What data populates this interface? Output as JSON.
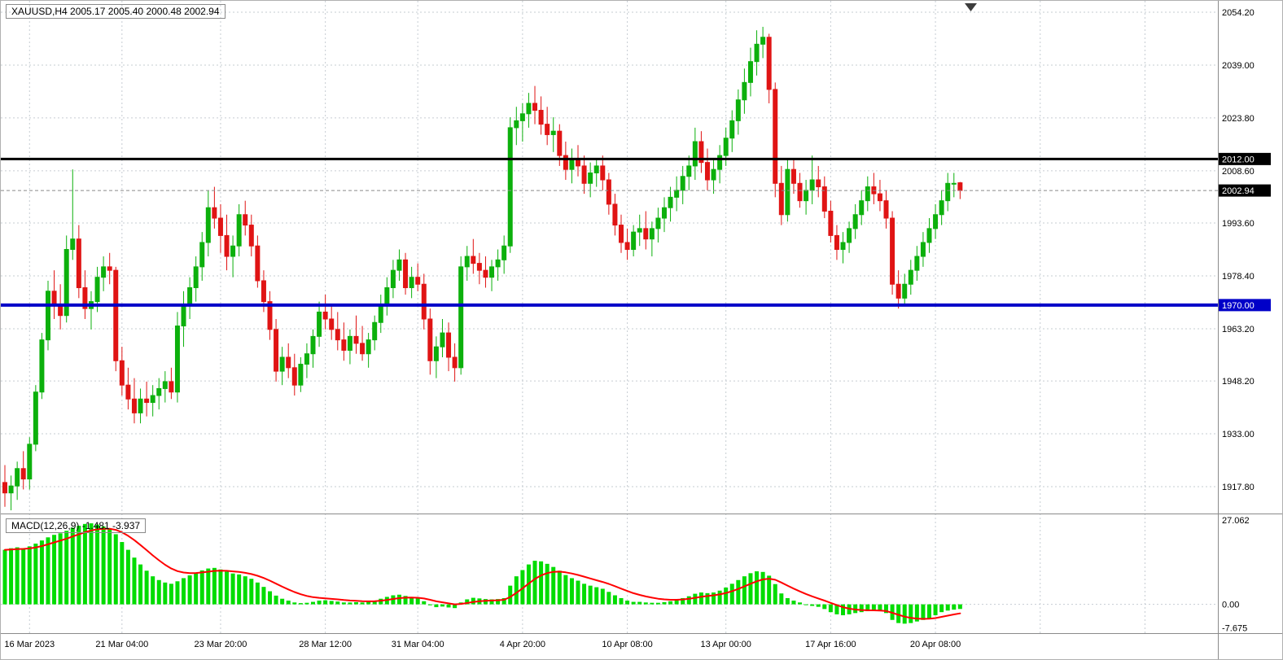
{
  "header": {
    "title_line": "XAUUSD,H4  2005.17 2005.40 2000.48 2002.94"
  },
  "indicator": {
    "label": "MACD(12,26,9) -1.481 -3.937"
  },
  "chart_data": {
    "type": "candlestick",
    "symbol": "XAUUSD",
    "timeframe": "H4",
    "ohlc_display": {
      "open": 2005.17,
      "high": 2005.4,
      "low": 2000.48,
      "close": 2002.94
    },
    "colors": {
      "up": "#0CB00C",
      "down": "#E01414",
      "macd_bar": "#00DC00",
      "signal": "#FF0000",
      "grid": "#C6CCD2",
      "level_black": "#000000",
      "level_blue": "#0000C8",
      "current_line": "#8A8A8A"
    },
    "price_axis": {
      "ticks": [
        {
          "label": "2054.20",
          "value": 2054.2
        },
        {
          "label": "2039.00",
          "value": 2039.0
        },
        {
          "label": "2023.80",
          "value": 2023.8
        },
        {
          "label": "2008.60",
          "value": 2008.6
        },
        {
          "label": "1993.60",
          "value": 1993.6
        },
        {
          "label": "1978.40",
          "value": 1978.4
        },
        {
          "label": "1963.20",
          "value": 1963.2
        },
        {
          "label": "1948.20",
          "value": 1948.2
        },
        {
          "label": "1933.00",
          "value": 1933.0
        },
        {
          "label": "1917.80",
          "value": 1917.8
        }
      ]
    },
    "levels": [
      {
        "label": "2012.00",
        "value": 2012.0,
        "color": "#000000",
        "width": 3,
        "badge": "#000000"
      },
      {
        "label": "2002.94",
        "value": 2002.94,
        "color": "#8A8A8A",
        "width": 1,
        "dash": "4,3",
        "badge": "#000000"
      },
      {
        "label": "1970.00",
        "value": 1970.0,
        "color": "#0000C8",
        "width": 4,
        "badge": "#0000C8"
      }
    ],
    "time_axis": [
      {
        "label": "16 Mar 2023",
        "index": 4
      },
      {
        "label": "21 Mar 04:00",
        "index": 19
      },
      {
        "label": "23 Mar 20:00",
        "index": 35
      },
      {
        "label": "28 Mar 12:00",
        "index": 52
      },
      {
        "label": "31 Mar 04:00",
        "index": 67
      },
      {
        "label": "4 Apr 20:00",
        "index": 84
      },
      {
        "label": "10 Apr 08:00",
        "index": 101
      },
      {
        "label": "13 Apr 00:00",
        "index": 117
      },
      {
        "label": "17 Apr 16:00",
        "index": 134
      },
      {
        "label": "20 Apr 08:00",
        "index": 151
      }
    ],
    "grid_extra_indices": [
      168,
      185
    ],
    "candles": [
      [
        1919,
        1924,
        1912,
        1916
      ],
      [
        1916,
        1921,
        1911,
        1918
      ],
      [
        1918,
        1925,
        1914,
        1923
      ],
      [
        1923,
        1928,
        1917,
        1920
      ],
      [
        1920,
        1932,
        1917,
        1930
      ],
      [
        1930,
        1947,
        1928,
        1945
      ],
      [
        1945,
        1962,
        1943,
        1960
      ],
      [
        1960,
        1977,
        1957,
        1974
      ],
      [
        1974,
        1980,
        1966,
        1970
      ],
      [
        1970,
        1976,
        1963,
        1967
      ],
      [
        1967,
        1990,
        1965,
        1986
      ],
      [
        1986,
        2009,
        1983,
        1989
      ],
      [
        1989,
        1993,
        1972,
        1975
      ],
      [
        1975,
        1980,
        1966,
        1969
      ],
      [
        1969,
        1974,
        1963,
        1971
      ],
      [
        1971,
        1981,
        1968,
        1978
      ],
      [
        1978,
        1984,
        1974,
        1981
      ],
      [
        1981,
        1985,
        1976,
        1980
      ],
      [
        1980,
        1981,
        1951,
        1954
      ],
      [
        1954,
        1958,
        1944,
        1947
      ],
      [
        1947,
        1952,
        1940,
        1943
      ],
      [
        1943,
        1949,
        1936,
        1939
      ],
      [
        1939,
        1946,
        1936,
        1943
      ],
      [
        1943,
        1948,
        1938,
        1942
      ],
      [
        1942,
        1947,
        1938,
        1944
      ],
      [
        1944,
        1949,
        1940,
        1946
      ],
      [
        1946,
        1951,
        1942,
        1948
      ],
      [
        1948,
        1952,
        1943,
        1945
      ],
      [
        1945,
        1968,
        1942,
        1964
      ],
      [
        1964,
        1974,
        1958,
        1970
      ],
      [
        1970,
        1978,
        1966,
        1975
      ],
      [
        1975,
        1984,
        1971,
        1981
      ],
      [
        1981,
        1991,
        1977,
        1988
      ],
      [
        1988,
        2003,
        1984,
        1998
      ],
      [
        1998,
        2004,
        1992,
        1995
      ],
      [
        1995,
        1999,
        1985,
        1990
      ],
      [
        1990,
        1996,
        1980,
        1984
      ],
      [
        1984,
        1990,
        1978,
        1987
      ],
      [
        1987,
        1999,
        1984,
        1996
      ],
      [
        1996,
        2000,
        1990,
        1993
      ],
      [
        1993,
        1996,
        1984,
        1987
      ],
      [
        1987,
        1990,
        1975,
        1977
      ],
      [
        1977,
        1980,
        1968,
        1971
      ],
      [
        1971,
        1974,
        1960,
        1963
      ],
      [
        1963,
        1966,
        1948,
        1951
      ],
      [
        1951,
        1958,
        1947,
        1955
      ],
      [
        1955,
        1959,
        1949,
        1952
      ],
      [
        1952,
        1956,
        1944,
        1947
      ],
      [
        1947,
        1955,
        1945,
        1953
      ],
      [
        1953,
        1959,
        1949,
        1956
      ],
      [
        1956,
        1963,
        1952,
        1961
      ],
      [
        1961,
        1971,
        1958,
        1968
      ],
      [
        1968,
        1973,
        1963,
        1966
      ],
      [
        1966,
        1970,
        1960,
        1963
      ],
      [
        1963,
        1968,
        1957,
        1960
      ],
      [
        1960,
        1965,
        1954,
        1957
      ],
      [
        1957,
        1963,
        1953,
        1961
      ],
      [
        1961,
        1967,
        1956,
        1959
      ],
      [
        1959,
        1964,
        1954,
        1956
      ],
      [
        1956,
        1962,
        1952,
        1960
      ],
      [
        1960,
        1967,
        1957,
        1965
      ],
      [
        1965,
        1973,
        1962,
        1970
      ],
      [
        1970,
        1978,
        1967,
        1975
      ],
      [
        1975,
        1983,
        1972,
        1980
      ],
      [
        1980,
        1986,
        1977,
        1983
      ],
      [
        1983,
        1985,
        1973,
        1975
      ],
      [
        1975,
        1981,
        1972,
        1978
      ],
      [
        1978,
        1982,
        1974,
        1976
      ],
      [
        1976,
        1979,
        1963,
        1966
      ],
      [
        1966,
        1969,
        1950,
        1954
      ],
      [
        1954,
        1961,
        1949,
        1958
      ],
      [
        1958,
        1966,
        1955,
        1962
      ],
      [
        1962,
        1965,
        1951,
        1955
      ],
      [
        1955,
        1959,
        1948,
        1952
      ],
      [
        1952,
        1984,
        1950,
        1981
      ],
      [
        1981,
        1987,
        1977,
        1984
      ],
      [
        1984,
        1989,
        1979,
        1982
      ],
      [
        1982,
        1985,
        1976,
        1980
      ],
      [
        1980,
        1984,
        1975,
        1978
      ],
      [
        1978,
        1983,
        1974,
        1981
      ],
      [
        1981,
        1986,
        1977,
        1983
      ],
      [
        1983,
        1990,
        1979,
        1987
      ],
      [
        1987,
        2024,
        1985,
        2021
      ],
      [
        2021,
        2027,
        2016,
        2023
      ],
      [
        2023,
        2028,
        2017,
        2025
      ],
      [
        2025,
        2031,
        2021,
        2028
      ],
      [
        2028,
        2033,
        2022,
        2026
      ],
      [
        2026,
        2030,
        2019,
        2022
      ],
      [
        2022,
        2027,
        2016,
        2019
      ],
      [
        2019,
        2024,
        2014,
        2020
      ],
      [
        2020,
        2022,
        2010,
        2013
      ],
      [
        2013,
        2017,
        2006,
        2009
      ],
      [
        2009,
        2015,
        2005,
        2012
      ],
      [
        2012,
        2016,
        2007,
        2010
      ],
      [
        2010,
        2013,
        2002,
        2005
      ],
      [
        2005,
        2011,
        2001,
        2008
      ],
      [
        2008,
        2012,
        2004,
        2010
      ],
      [
        2010,
        2013,
        2003,
        2006
      ],
      [
        2006,
        2008,
        1996,
        1999
      ],
      [
        1999,
        2002,
        1990,
        1993
      ],
      [
        1993,
        1996,
        1985,
        1988
      ],
      [
        1988,
        1992,
        1983,
        1986
      ],
      [
        1986,
        1993,
        1984,
        1991
      ],
      [
        1991,
        1996,
        1987,
        1992
      ],
      [
        1992,
        1997,
        1986,
        1989
      ],
      [
        1989,
        1994,
        1984,
        1992
      ],
      [
        1992,
        1998,
        1988,
        1995
      ],
      [
        1995,
        2001,
        1991,
        1998
      ],
      [
        1998,
        2004,
        1994,
        2001
      ],
      [
        2001,
        2007,
        1997,
        2003
      ],
      [
        2003,
        2010,
        1999,
        2007
      ],
      [
        2007,
        2013,
        2003,
        2010
      ],
      [
        2010,
        2021,
        2006,
        2017
      ],
      [
        2017,
        2020,
        2008,
        2011
      ],
      [
        2011,
        2015,
        2003,
        2006
      ],
      [
        2006,
        2012,
        2002,
        2009
      ],
      [
        2009,
        2016,
        2005,
        2013
      ],
      [
        2013,
        2021,
        2010,
        2018
      ],
      [
        2018,
        2026,
        2014,
        2023
      ],
      [
        2023,
        2032,
        2019,
        2029
      ],
      [
        2029,
        2038,
        2025,
        2034
      ],
      [
        2034,
        2044,
        2030,
        2040
      ],
      [
        2040,
        2049,
        2036,
        2045
      ],
      [
        2045,
        2050,
        2041,
        2047
      ],
      [
        2047,
        2048,
        2028,
        2032
      ],
      [
        2032,
        2034,
        2001,
        2005
      ],
      [
        2005,
        2010,
        1993,
        1996
      ],
      [
        1996,
        2012,
        1994,
        2009
      ],
      [
        2009,
        2012,
        2002,
        2005
      ],
      [
        2005,
        2008,
        1998,
        2000
      ],
      [
        2000,
        2006,
        1996,
        2003
      ],
      [
        2003,
        2013,
        1999,
        2006
      ],
      [
        2006,
        2010,
        2001,
        2004
      ],
      [
        2004,
        2007,
        1995,
        1997
      ],
      [
        1997,
        2000,
        1988,
        1990
      ],
      [
        1990,
        1993,
        1983,
        1986
      ],
      [
        1986,
        1991,
        1982,
        1988
      ],
      [
        1988,
        1994,
        1985,
        1992
      ],
      [
        1992,
        1999,
        1989,
        1996
      ],
      [
        1996,
        2003,
        1993,
        2000
      ],
      [
        2000,
        2007,
        1997,
        2004
      ],
      [
        2004,
        2008,
        1999,
        2002
      ],
      [
        2002,
        2006,
        1997,
        2000
      ],
      [
        2000,
        2003,
        1992,
        1995
      ],
      [
        1995,
        1997,
        1973,
        1976
      ],
      [
        1976,
        1980,
        1969,
        1972
      ],
      [
        1972,
        1979,
        1970,
        1976
      ],
      [
        1976,
        1983,
        1973,
        1980
      ],
      [
        1980,
        1987,
        1977,
        1984
      ],
      [
        1984,
        1991,
        1981,
        1988
      ],
      [
        1988,
        1995,
        1985,
        1992
      ],
      [
        1992,
        1999,
        1989,
        1996
      ],
      [
        1996,
        2003,
        1993,
        2000
      ],
      [
        2000,
        2008,
        1997,
        2005
      ],
      [
        2005,
        2008,
        2001,
        2005
      ],
      [
        2005.17,
        2005.4,
        2000.48,
        2002.94
      ]
    ],
    "macd": {
      "params": "12,26,9",
      "macd_value": -1.481,
      "signal_value": -3.937,
      "signal_ema_period": 9,
      "axis": [
        {
          "label": "27.062",
          "value": 27.062
        },
        {
          "label": "0.00",
          "value": 0
        },
        {
          "label": "-7.675",
          "value": -7.675
        }
      ],
      "histogram": [
        17.5,
        18,
        18.3,
        18,
        18.6,
        19.5,
        20.5,
        21.5,
        22.3,
        22.8,
        23.6,
        24.6,
        25.2,
        25.8,
        26,
        25.6,
        25,
        24.2,
        22.5,
        20,
        17.5,
        15,
        12.8,
        10.8,
        9,
        7.8,
        7,
        6.6,
        7.4,
        8.4,
        9.3,
        10.2,
        10.9,
        11.5,
        11.7,
        11.2,
        10.5,
        9.9,
        9.6,
        9,
        8.2,
        7,
        5.6,
        4.2,
        2.8,
        1.8,
        1.2,
        0.6,
        0.4,
        0.5,
        0.8,
        1.2,
        1.3,
        1.1,
        0.9,
        0.6,
        0.6,
        0.7,
        0.6,
        0.8,
        1.2,
        1.8,
        2.4,
        2.9,
        3.1,
        2.7,
        2.3,
        1.9,
        1,
        -0.3,
        -0.9,
        -0.7,
        -1,
        -1.2,
        0.6,
        1.6,
        2.1,
        1.9,
        1.7,
        1.6,
        1.7,
        2,
        6,
        9,
        11,
        12.8,
        14,
        13.8,
        13,
        12,
        10.8,
        9.4,
        8.4,
        7.6,
        6.6,
        6,
        5.5,
        5,
        4,
        2.9,
        2,
        1.2,
        0.8,
        0.8,
        0.6,
        0.5,
        0.5,
        0.7,
        1,
        1.4,
        2,
        2.6,
        3.4,
        3.8,
        3.6,
        3.8,
        4.4,
        5.4,
        6.6,
        7.8,
        9,
        10,
        10.6,
        10.4,
        9.2,
        6.5,
        3.5,
        2,
        1.2,
        0.6,
        0,
        -0.5,
        -0.8,
        -1.5,
        -2.5,
        -3.2,
        -3.5,
        -3.2,
        -2.8,
        -2.5,
        -2.2,
        -2,
        -2.2,
        -2.8,
        -5,
        -6,
        -6.2,
        -6,
        -5.5,
        -5,
        -4.5,
        -3.5,
        -2.5,
        -2,
        -1.7,
        -1.481
      ]
    }
  }
}
